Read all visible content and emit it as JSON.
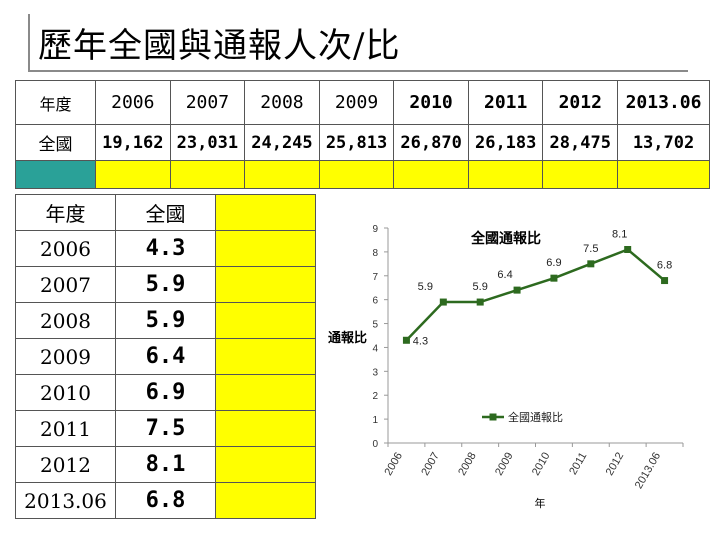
{
  "title": "歷年全國與通報人次/比",
  "top_table": {
    "row1_label": "年度",
    "row2_label": "全國",
    "years": [
      "2006",
      "2007",
      "2008",
      "2009",
      "2010",
      "2011",
      "2012",
      "2013.06"
    ],
    "counts": [
      "19,162",
      "23,031",
      "24,245",
      "25,813",
      "26,870",
      "26,183",
      "28,475",
      "13,702"
    ]
  },
  "left_table": {
    "col1_header": "年度",
    "col2_header": "全國",
    "years": [
      "2006",
      "2007",
      "2008",
      "2009",
      "2010",
      "2011",
      "2012",
      "2013.06"
    ],
    "values": [
      "4.3",
      "5.9",
      "5.9",
      "6.4",
      "6.9",
      "7.5",
      "8.1",
      "6.8"
    ]
  },
  "colors": {
    "line": "#2d6a1f",
    "accent_yellow": "#ffff00",
    "accent_teal": "#2aa198"
  },
  "chart_data": {
    "type": "line",
    "title": "全國通報比",
    "xlabel": "年",
    "ylabel": "通報比",
    "categories": [
      "2006",
      "2007",
      "2008",
      "2009",
      "2010",
      "2011",
      "2012",
      "2013.06"
    ],
    "series": [
      {
        "name": "全國通報比",
        "values": [
          4.3,
          5.9,
          5.9,
          6.4,
          6.9,
          7.5,
          8.1,
          6.8
        ]
      }
    ],
    "data_labels": [
      "4.3",
      "5.9",
      "5.9",
      "6.4",
      "6.9",
      "7.5",
      "8.1",
      "6.8"
    ],
    "yticks": [
      "0",
      "1",
      "2",
      "3",
      "4",
      "5",
      "6",
      "7",
      "8",
      "9"
    ],
    "ylim": [
      0,
      9
    ],
    "legend": "center-right"
  }
}
